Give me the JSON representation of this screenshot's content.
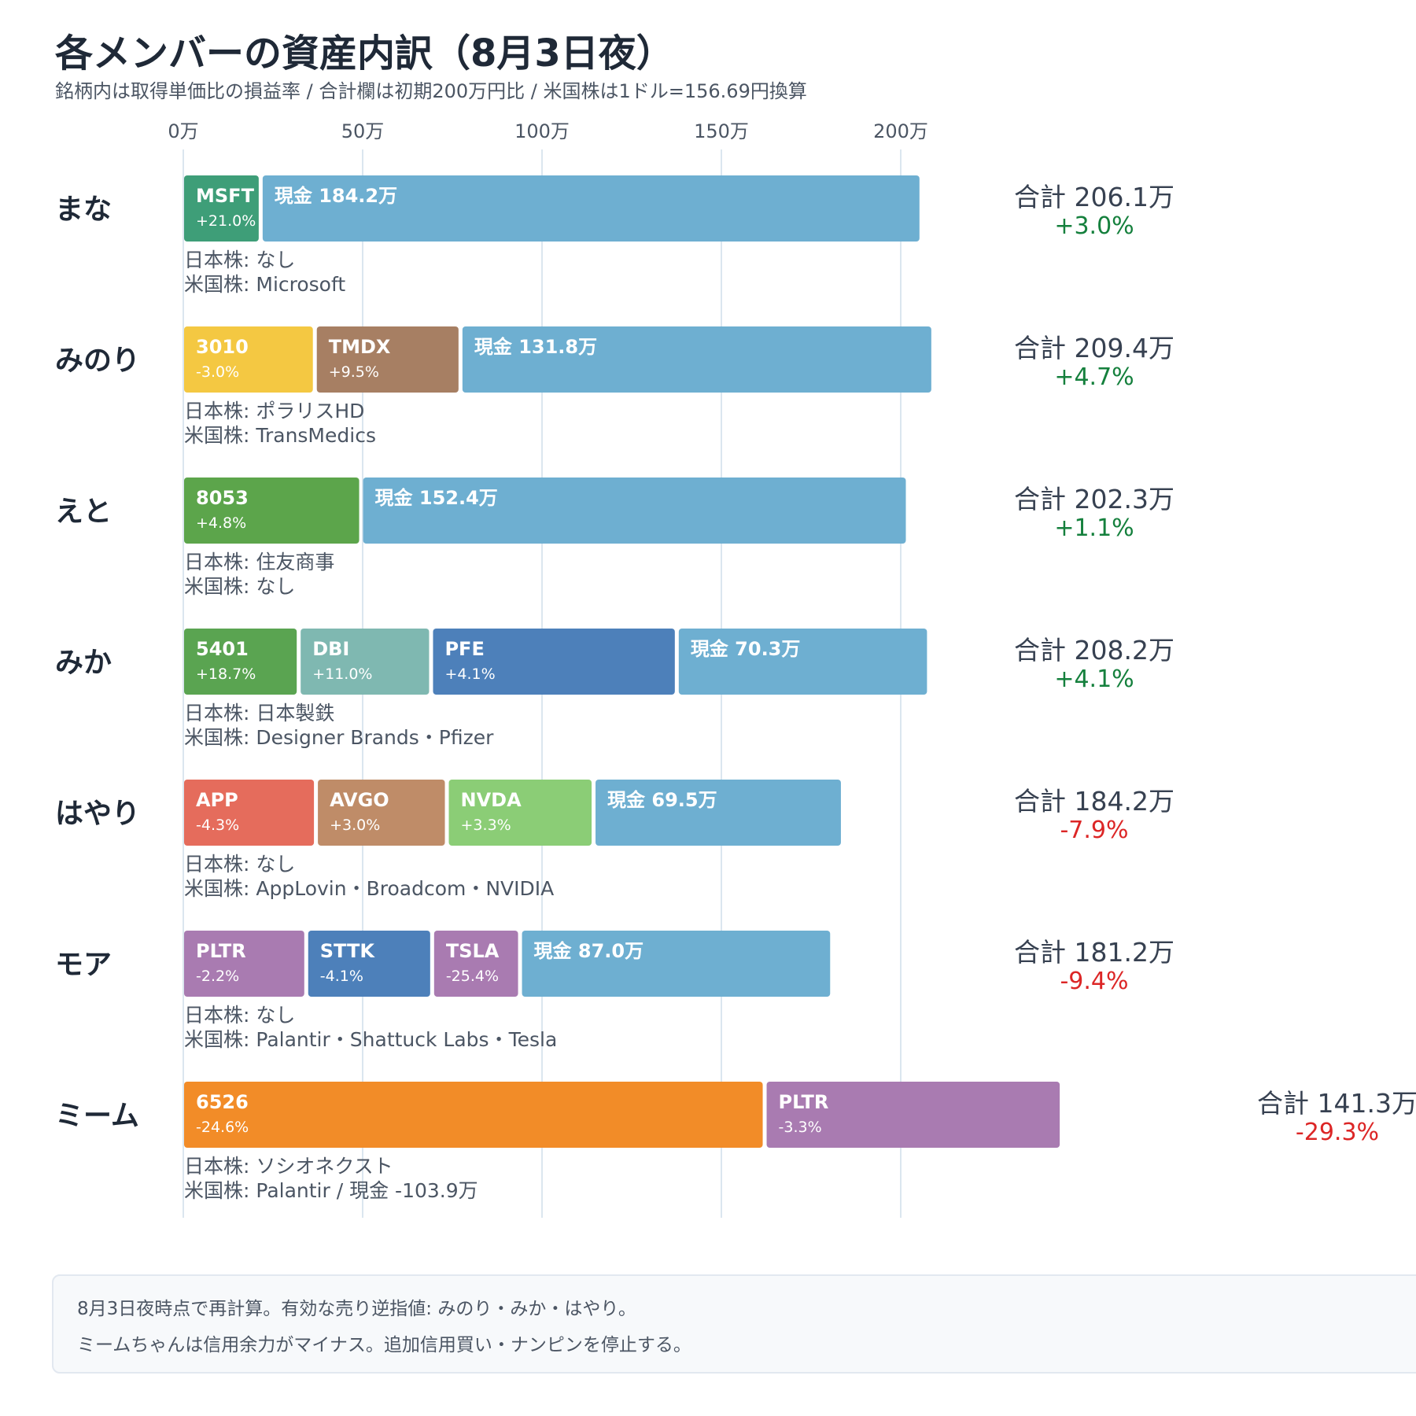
{
  "title": "各メンバーの資産内訳（8月3日夜）",
  "subtitle": "銘柄内は取得単価比の損益率 / 合計欄は初期200万円比 / 米国株は1ドル=156.69円換算",
  "note": {
    "lines": [
      "8月3日夜時点で再計算。有効な売り逆指値: みのり・みか・はやり。",
      "ミームちゃんは信用余力がマイナス。追加信用買い・ナンピンを停止する。"
    ]
  },
  "chart_data": {
    "type": "bar",
    "orientation": "horizontal",
    "stacked": true,
    "unit": "万",
    "xlim": [
      0,
      245
    ],
    "ticks": [
      {
        "value": 0,
        "label": "0万"
      },
      {
        "value": 50,
        "label": "50万"
      },
      {
        "value": 100,
        "label": "100万"
      },
      {
        "value": 150,
        "label": "150万"
      },
      {
        "value": 200,
        "label": "200万"
      }
    ],
    "grid": true,
    "colors": {
      "cash": "#6eafd1",
      "positive": "#15803d",
      "negative": "#dc2626"
    },
    "members": [
      {
        "name": "まな",
        "total_label": "合計 206.1万",
        "change_label": "+3.0%",
        "change_sign": "positive",
        "segments": [
          {
            "label": "MSFT",
            "sub": "+21.0%",
            "value": 21.9,
            "color": "#3e9e78"
          },
          {
            "label": "現金 184.2万",
            "sub": "",
            "value": 184.2,
            "color": "#6eafd1"
          }
        ],
        "jp_label": "日本株: なし",
        "us_label": "米国株: Microsoft"
      },
      {
        "name": "みのり",
        "total_label": "合計 209.4万",
        "change_label": "+4.7%",
        "change_sign": "positive",
        "segments": [
          {
            "label": "3010",
            "sub": "-3.0%",
            "value": 37.0,
            "color": "#f4c842"
          },
          {
            "label": "TMDX",
            "sub": "+9.5%",
            "value": 40.6,
            "color": "#a77f63"
          },
          {
            "label": "現金 131.8万",
            "sub": "",
            "value": 131.8,
            "color": "#6eafd1"
          }
        ],
        "jp_label": "日本株: ポラリスHD",
        "us_label": "米国株: TransMedics"
      },
      {
        "name": "えと",
        "total_label": "合計 202.3万",
        "change_label": "+1.1%",
        "change_sign": "positive",
        "segments": [
          {
            "label": "8053",
            "sub": "+4.8%",
            "value": 49.9,
            "color": "#5ca54b"
          },
          {
            "label": "現金 152.4万",
            "sub": "",
            "value": 152.4,
            "color": "#6eafd1"
          }
        ],
        "jp_label": "日本株: 住友商事",
        "us_label": "米国株: なし"
      },
      {
        "name": "みか",
        "total_label": "合計 208.2万",
        "change_label": "+4.1%",
        "change_sign": "positive",
        "segments": [
          {
            "label": "5401",
            "sub": "+18.7%",
            "value": 32.5,
            "color": "#5aa451"
          },
          {
            "label": "DBI",
            "sub": "+11.0%",
            "value": 36.9,
            "color": "#7fb8b1"
          },
          {
            "label": "PFE",
            "sub": "+4.1%",
            "value": 68.5,
            "color": "#4d80ba"
          },
          {
            "label": "現金 70.3万",
            "sub": "",
            "value": 70.3,
            "color": "#6eafd1"
          }
        ],
        "jp_label": "日本株: 日本製鉄",
        "us_label": "米国株: Designer Brands・Pfizer"
      },
      {
        "name": "はやり",
        "total_label": "合計 184.2万",
        "change_label": "-7.9%",
        "change_sign": "negative",
        "segments": [
          {
            "label": "APP",
            "sub": "-4.3%",
            "value": 37.3,
            "color": "#e56c5c"
          },
          {
            "label": "AVGO",
            "sub": "+3.0%",
            "value": 36.5,
            "color": "#bf8c68"
          },
          {
            "label": "NVDA",
            "sub": "+3.3%",
            "value": 40.9,
            "color": "#8bcd76"
          },
          {
            "label": "現金 69.5万",
            "sub": "",
            "value": 69.5,
            "color": "#6eafd1"
          }
        ],
        "jp_label": "日本株: なし",
        "us_label": "米国株: AppLovin・Broadcom・NVIDIA"
      },
      {
        "name": "モア",
        "total_label": "合計 181.2万",
        "change_label": "-9.4%",
        "change_sign": "negative",
        "segments": [
          {
            "label": "PLTR",
            "sub": "-2.2%",
            "value": 34.6,
            "color": "#a97bb1"
          },
          {
            "label": "STTK",
            "sub": "-4.1%",
            "value": 35.1,
            "color": "#4d80ba"
          },
          {
            "label": "TSLA",
            "sub": "-25.4%",
            "value": 24.5,
            "color": "#a97bb1"
          },
          {
            "label": "現金 87.0万",
            "sub": "",
            "value": 87.0,
            "color": "#6eafd1"
          }
        ],
        "jp_label": "日本株: なし",
        "us_label": "米国株: Palantir・Shattuck Labs・Tesla"
      },
      {
        "name": "ミーム",
        "total_label": "合計 141.3万",
        "change_label": "-29.3%",
        "change_sign": "negative",
        "segments": [
          {
            "label": "6526",
            "sub": "-24.6%",
            "value": 162.4,
            "color": "#f28c28"
          },
          {
            "label": "PLTR",
            "sub": "-3.3%",
            "value": 82.8,
            "color": "#a97bb1"
          }
        ],
        "jp_label": "日本株: ソシオネクスト",
        "us_label": "米国株: Palantir / 現金 -103.9万"
      }
    ]
  }
}
